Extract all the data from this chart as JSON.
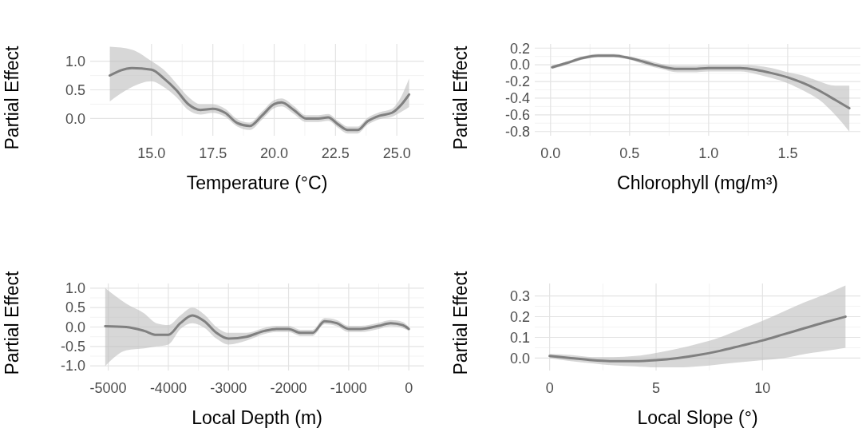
{
  "chart_data": [
    {
      "type": "line",
      "xlabel": "Temperature (°C)",
      "ylabel": "Partial Effect",
      "xlim": [
        12.5,
        26.1
      ],
      "ylim": [
        -0.3,
        1.3
      ],
      "xticks": [
        {
          "value": 15,
          "label": "15.0"
        },
        {
          "value": 17.5,
          "label": "17.5"
        },
        {
          "value": 20,
          "label": "20.0"
        },
        {
          "value": 22.5,
          "label": "22.5"
        },
        {
          "value": 25,
          "label": "25.0"
        }
      ],
      "yticks": [
        {
          "value": 0,
          "label": "0.0"
        },
        {
          "value": 0.5,
          "label": "0.5"
        },
        {
          "value": 1,
          "label": "1.0"
        }
      ],
      "grid": true,
      "marker": "none",
      "line_style": "solid",
      "series": [
        {
          "color": "#808080",
          "x": [
            13.3,
            14.2,
            15.0,
            15.5,
            16.0,
            16.5,
            17.0,
            17.5,
            18.0,
            18.5,
            19.0,
            19.5,
            20.0,
            20.3,
            20.8,
            21.3,
            21.8,
            22.2,
            22.6,
            23.0,
            23.4,
            23.8,
            24.3,
            24.8,
            25.2,
            25.5
          ],
          "values": [
            0.75,
            0.88,
            0.85,
            0.7,
            0.5,
            0.25,
            0.15,
            0.17,
            0.1,
            -0.08,
            -0.13,
            0.05,
            0.25,
            0.28,
            0.15,
            0.0,
            0.0,
            0.02,
            -0.1,
            -0.2,
            -0.2,
            -0.05,
            0.05,
            0.1,
            0.25,
            0.42
          ],
          "lower": [
            0.3,
            0.55,
            0.65,
            0.55,
            0.38,
            0.15,
            0.07,
            0.1,
            0.03,
            -0.14,
            -0.2,
            -0.02,
            0.18,
            0.21,
            0.08,
            -0.06,
            -0.06,
            -0.04,
            -0.16,
            -0.26,
            -0.26,
            -0.11,
            -0.01,
            0.03,
            0.12,
            0.2
          ],
          "upper": [
            1.25,
            1.2,
            1.0,
            0.85,
            0.62,
            0.38,
            0.25,
            0.25,
            0.17,
            -0.01,
            -0.07,
            0.12,
            0.32,
            0.35,
            0.22,
            0.06,
            0.06,
            0.08,
            -0.04,
            -0.14,
            -0.14,
            0.01,
            0.11,
            0.17,
            0.4,
            0.7
          ]
        }
      ]
    },
    {
      "type": "line",
      "xlabel": "Chlorophyll (mg/m³)",
      "ylabel": "Partial Effect",
      "xlim": [
        -0.1,
        1.96
      ],
      "ylim": [
        -0.85,
        0.25
      ],
      "xticks": [
        {
          "value": 0,
          "label": "0.0"
        },
        {
          "value": 0.5,
          "label": "0.5"
        },
        {
          "value": 1,
          "label": "1.0"
        },
        {
          "value": 1.5,
          "label": "1.5"
        }
      ],
      "yticks": [
        {
          "value": -0.8,
          "label": "-0.8"
        },
        {
          "value": -0.6,
          "label": "-0.6"
        },
        {
          "value": -0.4,
          "label": "-0.4"
        },
        {
          "value": -0.2,
          "label": "-0.2"
        },
        {
          "value": 0,
          "label": "0.0"
        },
        {
          "value": 0.2,
          "label": "0.2"
        }
      ],
      "grid": true,
      "marker": "none",
      "line_style": "solid",
      "series": [
        {
          "color": "#808080",
          "x": [
            0.01,
            0.1,
            0.2,
            0.3,
            0.4,
            0.5,
            0.6,
            0.7,
            0.8,
            0.9,
            1.0,
            1.1,
            1.2,
            1.3,
            1.4,
            1.5,
            1.6,
            1.7,
            1.8,
            1.89
          ],
          "values": [
            -0.03,
            0.02,
            0.08,
            0.11,
            0.11,
            0.08,
            0.03,
            -0.02,
            -0.05,
            -0.05,
            -0.04,
            -0.04,
            -0.04,
            -0.06,
            -0.1,
            -0.15,
            -0.22,
            -0.31,
            -0.42,
            -0.52
          ],
          "lower": [
            -0.05,
            0.0,
            0.06,
            0.09,
            0.09,
            0.06,
            0.0,
            -0.05,
            -0.09,
            -0.09,
            -0.08,
            -0.08,
            -0.08,
            -0.11,
            -0.16,
            -0.22,
            -0.31,
            -0.42,
            -0.6,
            -0.8
          ],
          "upper": [
            -0.01,
            0.04,
            0.1,
            0.13,
            0.13,
            0.1,
            0.06,
            0.01,
            -0.01,
            -0.01,
            0.0,
            0.0,
            0.0,
            -0.01,
            -0.04,
            -0.09,
            -0.13,
            -0.2,
            -0.25,
            -0.25
          ]
        }
      ]
    },
    {
      "type": "line",
      "xlabel": "Local Depth (m)",
      "ylabel": "Partial Effect",
      "xlim": [
        -5300,
        250
      ],
      "ylim": [
        -1.12,
        1.12
      ],
      "xticks": [
        -5000,
        -4000,
        -3000,
        -2000,
        -1000,
        0
      ],
      "yticks": [
        {
          "value": -1,
          "label": "-1.0"
        },
        {
          "value": -0.5,
          "label": "-0.5"
        },
        {
          "value": 0,
          "label": "0.0"
        },
        {
          "value": 0.5,
          "label": "0.5"
        },
        {
          "value": 1,
          "label": "1.0"
        }
      ],
      "grid": true,
      "marker": "none",
      "line_style": "solid",
      "series": [
        {
          "color": "#808080",
          "x": [
            -5050,
            -4700,
            -4400,
            -4200,
            -4000,
            -3800,
            -3600,
            -3400,
            -3200,
            -3000,
            -2700,
            -2400,
            -2200,
            -2000,
            -1800,
            -1600,
            -1400,
            -1200,
            -1000,
            -800,
            -500,
            -300,
            -100,
            0
          ],
          "values": [
            0.02,
            0.0,
            -0.1,
            -0.2,
            -0.2,
            0.1,
            0.3,
            0.15,
            -0.15,
            -0.3,
            -0.25,
            -0.1,
            -0.05,
            -0.05,
            -0.15,
            -0.15,
            0.15,
            0.1,
            -0.05,
            -0.05,
            0.03,
            0.1,
            0.05,
            -0.05
          ],
          "lower": [
            -1.0,
            -0.6,
            -0.55,
            -0.5,
            -0.45,
            -0.05,
            0.1,
            -0.02,
            -0.3,
            -0.45,
            -0.35,
            -0.18,
            -0.13,
            -0.13,
            -0.23,
            -0.23,
            0.07,
            0.02,
            -0.13,
            -0.13,
            -0.05,
            0.02,
            -0.03,
            -0.1
          ],
          "upper": [
            1.0,
            0.6,
            0.35,
            0.1,
            0.05,
            0.3,
            0.5,
            0.32,
            0.0,
            -0.15,
            -0.15,
            -0.02,
            0.03,
            0.03,
            -0.07,
            -0.07,
            0.23,
            0.18,
            0.03,
            0.03,
            0.11,
            0.18,
            0.13,
            0.0
          ]
        }
      ]
    },
    {
      "type": "line",
      "xlabel": "Local Slope (°)",
      "ylabel": "Partial Effect",
      "xlim": [
        -0.7,
        14.6
      ],
      "ylim": [
        -0.06,
        0.36
      ],
      "xticks": [
        0,
        5,
        10
      ],
      "yticks": [
        {
          "value": 0,
          "label": "0.0"
        },
        {
          "value": 0.1,
          "label": "0.1"
        },
        {
          "value": 0.2,
          "label": "0.2"
        },
        {
          "value": 0.3,
          "label": "0.3"
        }
      ],
      "grid": true,
      "marker": "none",
      "line_style": "solid",
      "series": [
        {
          "color": "#808080",
          "x": [
            0,
            1,
            2,
            3,
            4,
            5,
            6,
            7,
            8,
            9,
            10,
            11,
            12,
            13,
            13.9
          ],
          "values": [
            0.01,
            0.0,
            -0.01,
            -0.015,
            -0.015,
            -0.01,
            0.0,
            0.015,
            0.035,
            0.06,
            0.085,
            0.115,
            0.145,
            0.175,
            0.2
          ],
          "lower": [
            0.0,
            -0.015,
            -0.025,
            -0.035,
            -0.04,
            -0.045,
            -0.045,
            -0.04,
            -0.03,
            -0.02,
            -0.01,
            0.0,
            0.02,
            0.035,
            0.05
          ],
          "upper": [
            0.02,
            0.015,
            0.005,
            0.005,
            0.01,
            0.025,
            0.045,
            0.07,
            0.1,
            0.14,
            0.18,
            0.225,
            0.27,
            0.31,
            0.35
          ]
        }
      ]
    }
  ]
}
